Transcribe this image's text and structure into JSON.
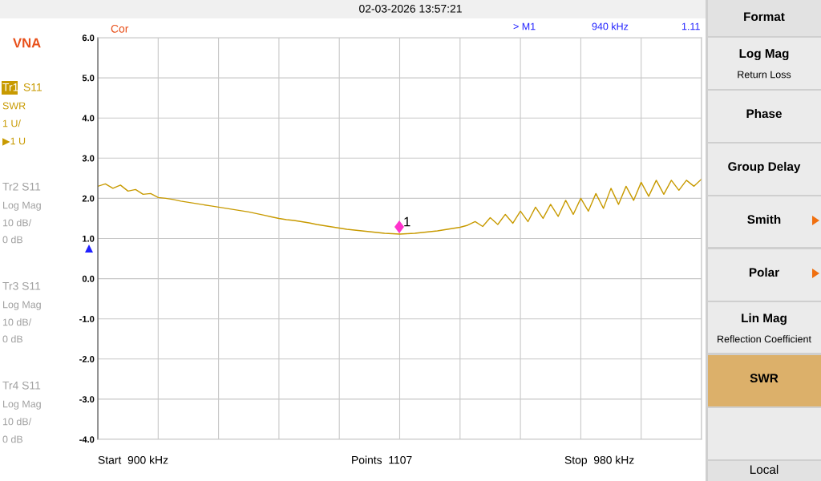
{
  "chart_data": {
    "type": "line",
    "categories": [
      null,
      null,
      null,
      null,
      null,
      null,
      null,
      null,
      null,
      null,
      null,
      null,
      null,
      null,
      null,
      null,
      null,
      null,
      null,
      null,
      null,
      null,
      null,
      null,
      null,
      null,
      null,
      null,
      null,
      null,
      null,
      null,
      null,
      null,
      null,
      null,
      null,
      null,
      null,
      null,
      null,
      null,
      null,
      null,
      null,
      null,
      null,
      null,
      null,
      null,
      null,
      null,
      null,
      null,
      null,
      null,
      null,
      null,
      null,
      null,
      null,
      null,
      null,
      null,
      null,
      null,
      null,
      null,
      null,
      null,
      null,
      null,
      null,
      null,
      null,
      null,
      null,
      null,
      null,
      null,
      null
    ],
    "series": [
      {
        "color": "#c89a00",
        "values": [
          2.3,
          2.36,
          2.25,
          2.33,
          2.18,
          2.22,
          2.1,
          2.12,
          2.02,
          2.0,
          1.97,
          1.93,
          1.9,
          1.87,
          1.84,
          1.81,
          1.78,
          1.75,
          1.72,
          1.69,
          1.66,
          1.62,
          1.58,
          1.54,
          1.5,
          1.47,
          1.45,
          1.42,
          1.39,
          1.35,
          1.32,
          1.29,
          1.26,
          1.23,
          1.21,
          1.19,
          1.17,
          1.15,
          1.13,
          1.12,
          1.11,
          1.12,
          1.13,
          1.15,
          1.17,
          1.19,
          1.22,
          1.25,
          1.28,
          1.33,
          1.42,
          1.3,
          1.52,
          1.35,
          1.6,
          1.38,
          1.68,
          1.42,
          1.78,
          1.5,
          1.85,
          1.55,
          1.95,
          1.6,
          2.0,
          1.68,
          2.12,
          1.75,
          2.25,
          1.85,
          2.3,
          1.95,
          2.4,
          2.05,
          2.45,
          2.1,
          2.45,
          2.2,
          2.45,
          2.3,
          2.48
        ]
      }
    ],
    "ylim": [
      -4,
      6
    ],
    "yticks": [
      {
        "value": 6,
        "label": "6.0"
      },
      {
        "value": 5,
        "label": "5.0"
      },
      {
        "value": 4,
        "label": "4.0"
      },
      {
        "value": 3,
        "label": "3.0"
      },
      {
        "value": 2,
        "label": "2.0"
      },
      {
        "value": 1,
        "label": "1.0"
      },
      {
        "value": 0,
        "label": "0.0"
      },
      {
        "value": -1,
        "label": "-1.0"
      },
      {
        "value": -2,
        "label": "-2.0"
      },
      {
        "value": -3,
        "label": "-3.0"
      },
      {
        "value": -4,
        "label": "-4.0"
      }
    ],
    "grid": true,
    "legend": false,
    "marker": "none",
    "line_style": "solid",
    "annotations": [
      "VNA",
      "Tr1",
      "S11",
      "SWR",
      "1 U/",
      "▶1 U",
      "Tr2 S11",
      "Log Mag",
      "10 dB/",
      "0 dB",
      "Tr3 S11",
      "Log Mag",
      "10 dB/",
      "0 dB",
      "Tr4 S11",
      "Log Mag",
      "10 dB/",
      "0 dB",
      "02-03-2026 13:57:21",
      "Cor",
      "> M1",
      "940 kHz",
      "1.11",
      "Start  900 kHz",
      "Points  1107",
      "Stop  980 kHz",
      "Format",
      "Log Mag",
      "Return Loss",
      "Phase",
      "Group Delay",
      "Smith",
      "Polar",
      "Lin Mag",
      "Reflection Coefficient",
      "SWR",
      "Local",
      "1"
    ]
  }
}
